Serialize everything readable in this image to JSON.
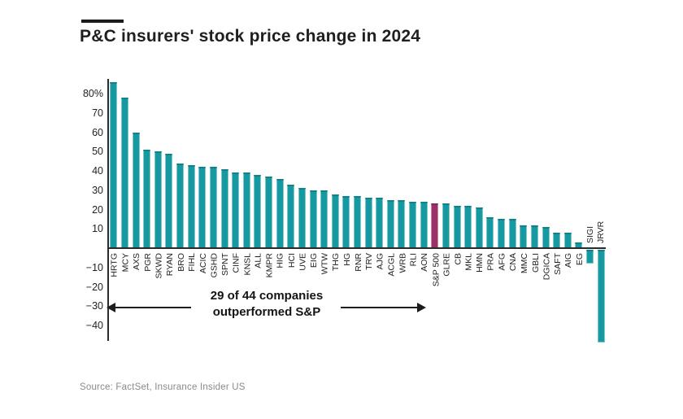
{
  "title": "P&C insurers' stock price change in 2024",
  "source": "Source: FactSet, Insurance Insider US",
  "annotation": {
    "line1": "29 of 44 companies",
    "line2": "outperformed S&P"
  },
  "colors": {
    "bar_teal": "#1699A1",
    "bar_highlight": "#9A3169",
    "axis": "#2b2b2b",
    "title_text": "#1f1f1f",
    "source_text": "#8a8a8a"
  },
  "chart_data": {
    "type": "bar",
    "title": "P&C insurers' stock price change in 2024",
    "ylim": [
      -48,
      88
    ],
    "grid": false,
    "highlight_category": "S&P 500",
    "y_ticks": [
      {
        "v": 80,
        "label": "80%"
      },
      {
        "v": 70,
        "label": "70"
      },
      {
        "v": 60,
        "label": "60"
      },
      {
        "v": 50,
        "label": "50"
      },
      {
        "v": 40,
        "label": "40"
      },
      {
        "v": 30,
        "label": "30"
      },
      {
        "v": 20,
        "label": "20"
      },
      {
        "v": 10,
        "label": "10"
      },
      {
        "v": -10,
        "label": "−10"
      },
      {
        "v": -20,
        "label": "−20"
      },
      {
        "v": -30,
        "label": "−30"
      },
      {
        "v": -40,
        "label": "−40"
      }
    ],
    "categories": [
      "HRTG",
      "MCY",
      "AXS",
      "PGR",
      "SKWD",
      "RYAN",
      "BRO",
      "FIHL",
      "ACIC",
      "GSHD",
      "SPNT",
      "CINF",
      "KNSL",
      "ALL",
      "KMPR",
      "HIG",
      "HCI",
      "UVE",
      "EIG",
      "WTW",
      "THG",
      "HG",
      "RNR",
      "TRV",
      "AJG",
      "ACGL",
      "WRB",
      "RLI",
      "AON",
      "S&P 500",
      "GLRE",
      "CB",
      "MKL",
      "HMN",
      "PRA",
      "AFG",
      "CNA",
      "MMC",
      "GBLI",
      "DGICA",
      "SAFT",
      "AIG",
      "EG",
      "SIGI",
      "JRVR"
    ],
    "values": [
      86,
      78,
      60,
      51,
      50,
      49,
      44,
      43,
      42,
      42,
      41,
      39,
      39,
      38,
      37,
      36,
      33,
      31,
      30,
      30,
      28,
      27,
      27,
      26,
      26,
      25,
      25,
      24,
      24,
      23,
      23,
      22,
      22,
      21,
      16,
      15,
      15,
      12,
      12,
      11,
      8,
      8,
      3,
      -7,
      -48
    ]
  }
}
